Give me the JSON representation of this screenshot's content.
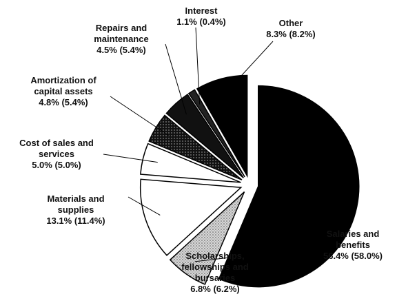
{
  "chart_data": {
    "type": "pie",
    "categories": [
      "Salaries and benefits",
      "Scholarships, fellowships and bursaries",
      "Materials and supplies",
      "Cost of sales and services",
      "Amortization of capital assets",
      "Repairs and maintenance",
      "Interest",
      "Other"
    ],
    "values": [
      56.4,
      6.8,
      13.1,
      5.0,
      4.8,
      4.5,
      1.1,
      8.3
    ],
    "value_labels": [
      "56.4% (58.0%)",
      "6.8% (6.2%)",
      "13.1% (11.4%)",
      "5.0% (5.0%)",
      "4.8% (5.4%)",
      "4.5% (5.4%)",
      "1.1% (0.4%)",
      "8.3% (8.2%)"
    ],
    "colors": [
      "#000000",
      "#bdbdbd",
      "#ffffff",
      "#ffffff",
      "#333333",
      "#111111",
      "#222222",
      "#000000"
    ]
  }
}
